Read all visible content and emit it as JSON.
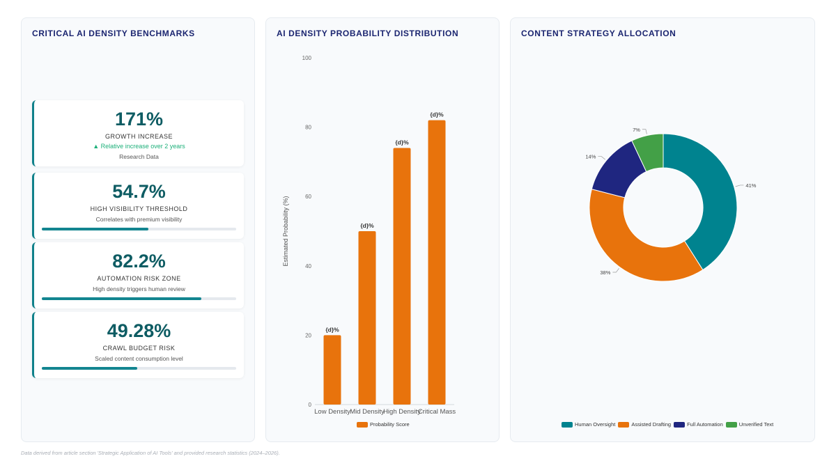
{
  "panels": {
    "benchmarks_title": "CRITICAL AI DENSITY BENCHMARKS",
    "distribution_title": "AI DENSITY PROBABILITY DISTRIBUTION",
    "allocation_title": "CONTENT STRATEGY ALLOCATION"
  },
  "cards": [
    {
      "value": "171%",
      "label": "GROWTH INCREASE",
      "trend": "▲ Relative increase over 2 years",
      "source": "Research Data"
    },
    {
      "value": "54.7%",
      "label": "HIGH VISIBILITY THRESHOLD",
      "sub": "Correlates with premium visibility",
      "progress": 54.7
    },
    {
      "value": "82.2%",
      "label": "AUTOMATION RISK ZONE",
      "sub": "High density triggers human review",
      "progress": 82.2
    },
    {
      "value": "49.28%",
      "label": "CRAWL BUDGET RISK",
      "sub": "Scaled content consumption level",
      "progress": 49.28
    }
  ],
  "chart_data": [
    {
      "type": "bar",
      "categories": [
        "Low Density",
        "Mid Density",
        "High Density",
        "Critical Mass"
      ],
      "series": [
        {
          "name": "Probability Score",
          "values": [
            20,
            50,
            74,
            82
          ]
        }
      ],
      "data_labels": [
        "{d}%",
        "{d}%",
        "{d}%",
        "{d}%"
      ],
      "ylabel": "Estimated Probability (%)",
      "ylim": [
        0,
        100
      ],
      "yticks": [
        "0",
        "20",
        "40",
        "60",
        "80",
        "100"
      ],
      "color": "#e8730c",
      "grid": false,
      "legend": "bottom"
    },
    {
      "type": "pie",
      "donut": true,
      "labels": [
        "Human Oversight",
        "Assisted Drafting",
        "Full Automation",
        "Unverified Text"
      ],
      "values": [
        41,
        38,
        14,
        7
      ],
      "data_labels": [
        "41%",
        "38%",
        "14%",
        "7%"
      ],
      "colors": [
        "#00838f",
        "#e8730c",
        "#1f2680",
        "#43a047"
      ],
      "legend": "bottom"
    }
  ],
  "footer": "Data derived from article section 'Strategic Application of AI Tools' and provided research statistics (2024–2026)."
}
